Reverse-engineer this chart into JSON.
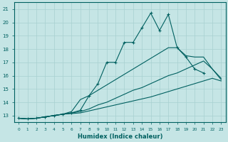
{
  "xlabel": "Humidex (Indice chaleur)",
  "ylabel": "",
  "bg_color": "#c5e5e5",
  "grid_color": "#a8d0d0",
  "line_color": "#006060",
  "xlim": [
    -0.5,
    23.5
  ],
  "ylim": [
    12.5,
    21.5
  ],
  "xticks": [
    0,
    1,
    2,
    3,
    4,
    5,
    6,
    7,
    8,
    9,
    10,
    11,
    12,
    13,
    14,
    15,
    16,
    17,
    18,
    19,
    20,
    21,
    22,
    23
  ],
  "yticks": [
    13,
    14,
    15,
    16,
    17,
    18,
    19,
    20,
    21
  ],
  "lines": [
    {
      "x": [
        0,
        1,
        2,
        3,
        4,
        5,
        6,
        7,
        8,
        9,
        10,
        11,
        12,
        13,
        14,
        15,
        16,
        17,
        18,
        19,
        20,
        21
      ],
      "y": [
        12.8,
        12.75,
        12.8,
        12.9,
        13.0,
        13.1,
        13.2,
        13.4,
        14.5,
        15.4,
        17.0,
        17.0,
        18.5,
        18.5,
        19.6,
        20.7,
        19.4,
        20.6,
        18.1,
        17.4,
        16.5,
        16.2
      ],
      "has_markers": true
    },
    {
      "x": [
        0,
        1,
        2,
        3,
        4,
        5,
        6,
        7,
        8,
        9,
        10,
        11,
        12,
        13,
        14,
        15,
        16,
        17,
        18,
        19,
        20,
        21,
        22,
        23
      ],
      "y": [
        12.8,
        12.75,
        12.8,
        12.9,
        13.0,
        13.1,
        13.3,
        14.2,
        14.5,
        14.9,
        15.3,
        15.7,
        16.1,
        16.5,
        16.9,
        17.3,
        17.7,
        18.1,
        18.1,
        17.5,
        17.4,
        17.4,
        16.5,
        15.7
      ],
      "has_markers": false
    },
    {
      "x": [
        0,
        1,
        2,
        3,
        4,
        5,
        6,
        7,
        8,
        9,
        10,
        11,
        12,
        13,
        14,
        15,
        16,
        17,
        18,
        19,
        20,
        21,
        22,
        23
      ],
      "y": [
        12.8,
        12.75,
        12.8,
        12.9,
        13.0,
        13.1,
        13.2,
        13.3,
        13.5,
        13.8,
        14.0,
        14.3,
        14.6,
        14.9,
        15.1,
        15.4,
        15.7,
        16.0,
        16.2,
        16.5,
        16.8,
        17.1,
        16.5,
        15.8
      ],
      "has_markers": false
    },
    {
      "x": [
        0,
        1,
        2,
        3,
        4,
        5,
        6,
        7,
        8,
        9,
        10,
        11,
        12,
        13,
        14,
        15,
        16,
        17,
        18,
        19,
        20,
        21,
        22,
        23
      ],
      "y": [
        12.8,
        12.75,
        12.8,
        12.9,
        13.0,
        13.1,
        13.15,
        13.2,
        13.35,
        13.5,
        13.65,
        13.8,
        13.95,
        14.1,
        14.25,
        14.4,
        14.6,
        14.8,
        15.0,
        15.2,
        15.4,
        15.6,
        15.8,
        15.6
      ],
      "has_markers": false
    }
  ]
}
